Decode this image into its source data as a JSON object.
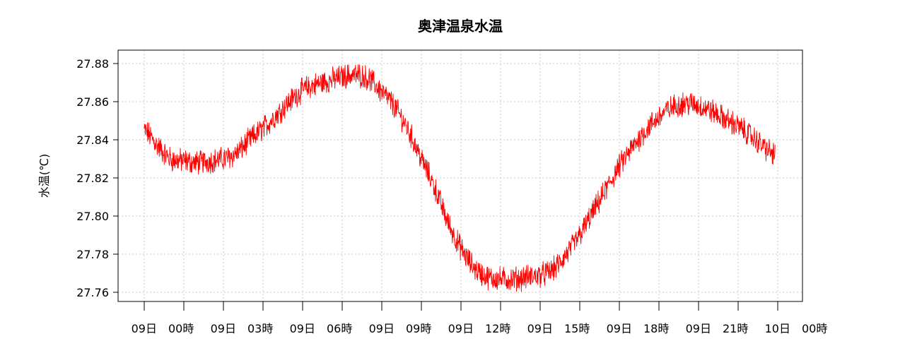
{
  "chart_data": {
    "type": "line",
    "title": "奥津温泉水温",
    "ylabel": "水温(℃)",
    "xlabel": "",
    "ylim": [
      27.755,
      27.887
    ],
    "y_ticks": [
      "27.76",
      "27.78",
      "27.80",
      "27.82",
      "27.84",
      "27.86",
      "27.88"
    ],
    "x_ticks": [
      "09日　00時",
      "09日　03時",
      "09日　06時",
      "09日　09時",
      "09日　12時",
      "09日　15時",
      "09日　18時",
      "09日　21時",
      "10日　00時"
    ],
    "x_range_hours": [
      0,
      24
    ],
    "grid": true,
    "series": [
      {
        "color": "#ff0000",
        "hours": [
          0,
          0.5,
          1,
          1.5,
          2,
          2.5,
          3,
          3.5,
          4,
          4.5,
          5,
          5.5,
          6,
          6.5,
          7,
          7.5,
          8,
          8.5,
          9,
          9.5,
          10,
          10.5,
          11,
          11.5,
          12,
          12.5,
          13,
          13.5,
          14,
          14.5,
          15,
          15.5,
          16,
          16.5,
          17,
          17.5,
          18,
          18.5,
          19,
          19.5,
          20,
          20.5,
          21,
          21.5,
          22,
          22.5,
          23,
          23.5,
          23.9
        ],
        "values": [
          27.845,
          27.837,
          27.83,
          27.829,
          27.828,
          27.829,
          27.83,
          27.833,
          27.84,
          27.846,
          27.853,
          27.86,
          27.866,
          27.869,
          27.871,
          27.873,
          27.874,
          27.872,
          27.865,
          27.857,
          27.845,
          27.83,
          27.815,
          27.797,
          27.783,
          27.773,
          27.768,
          27.767,
          27.767,
          27.768,
          27.769,
          27.772,
          27.78,
          27.79,
          27.802,
          27.814,
          27.826,
          27.836,
          27.845,
          27.852,
          27.857,
          27.859,
          27.858,
          27.855,
          27.851,
          27.847,
          27.842,
          27.836,
          27.832
        ]
      }
    ]
  }
}
